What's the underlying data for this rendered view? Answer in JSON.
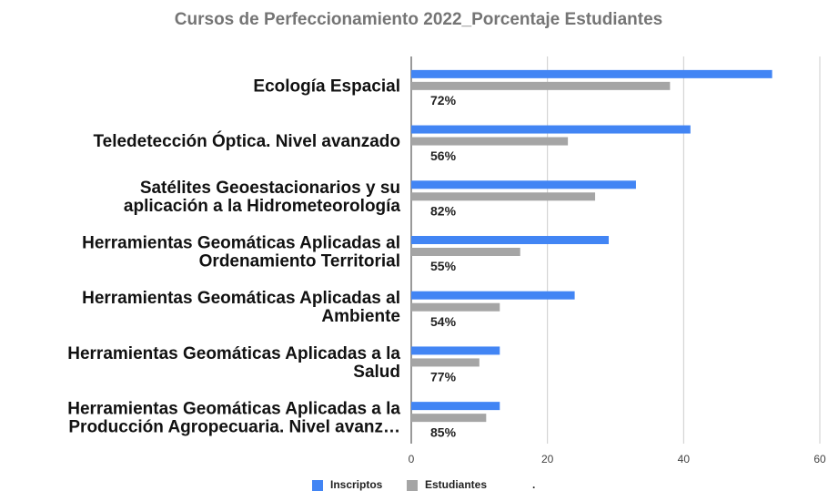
{
  "chart_data": {
    "type": "hbar",
    "title": "Cursos de Perfeccionamiento 2022_Porcentaje Estudiantes",
    "categories": [
      [
        "Ecología Espacial"
      ],
      [
        "Teledetección Óptica. Nivel avanzado"
      ],
      [
        "Satélites Geoestacionarios y su",
        "aplicación a la Hidrometeorología"
      ],
      [
        "Herramientas Geomáticas Aplicadas al",
        "Ordenamiento Territorial"
      ],
      [
        "Herramientas Geomáticas Aplicadas al",
        "Ambiente"
      ],
      [
        "Herramientas Geomáticas Aplicadas a la",
        "Salud"
      ],
      [
        "Herramientas Geomáticas Aplicadas a la",
        "Producción Agropecuaria. Nivel avanz…"
      ]
    ],
    "series": [
      {
        "name": "Inscriptos",
        "color": "#4285f4",
        "values": [
          53,
          41,
          33,
          29,
          24,
          13,
          13
        ]
      },
      {
        "name": "Estudiantes",
        "color": "#a5a5a5",
        "values": [
          38,
          23,
          27,
          16,
          13,
          10,
          11
        ]
      },
      {
        "name": ".",
        "color": null,
        "values": [
          null,
          null,
          null,
          null,
          null,
          null,
          null
        ]
      }
    ],
    "annotations": [
      "72%",
      "56%",
      "82%",
      "55%",
      "54%",
      "77%",
      "85%"
    ],
    "xlim": [
      0,
      60
    ],
    "xticks": [
      0,
      20,
      40,
      60
    ],
    "grid": true,
    "legend": "bottom"
  }
}
